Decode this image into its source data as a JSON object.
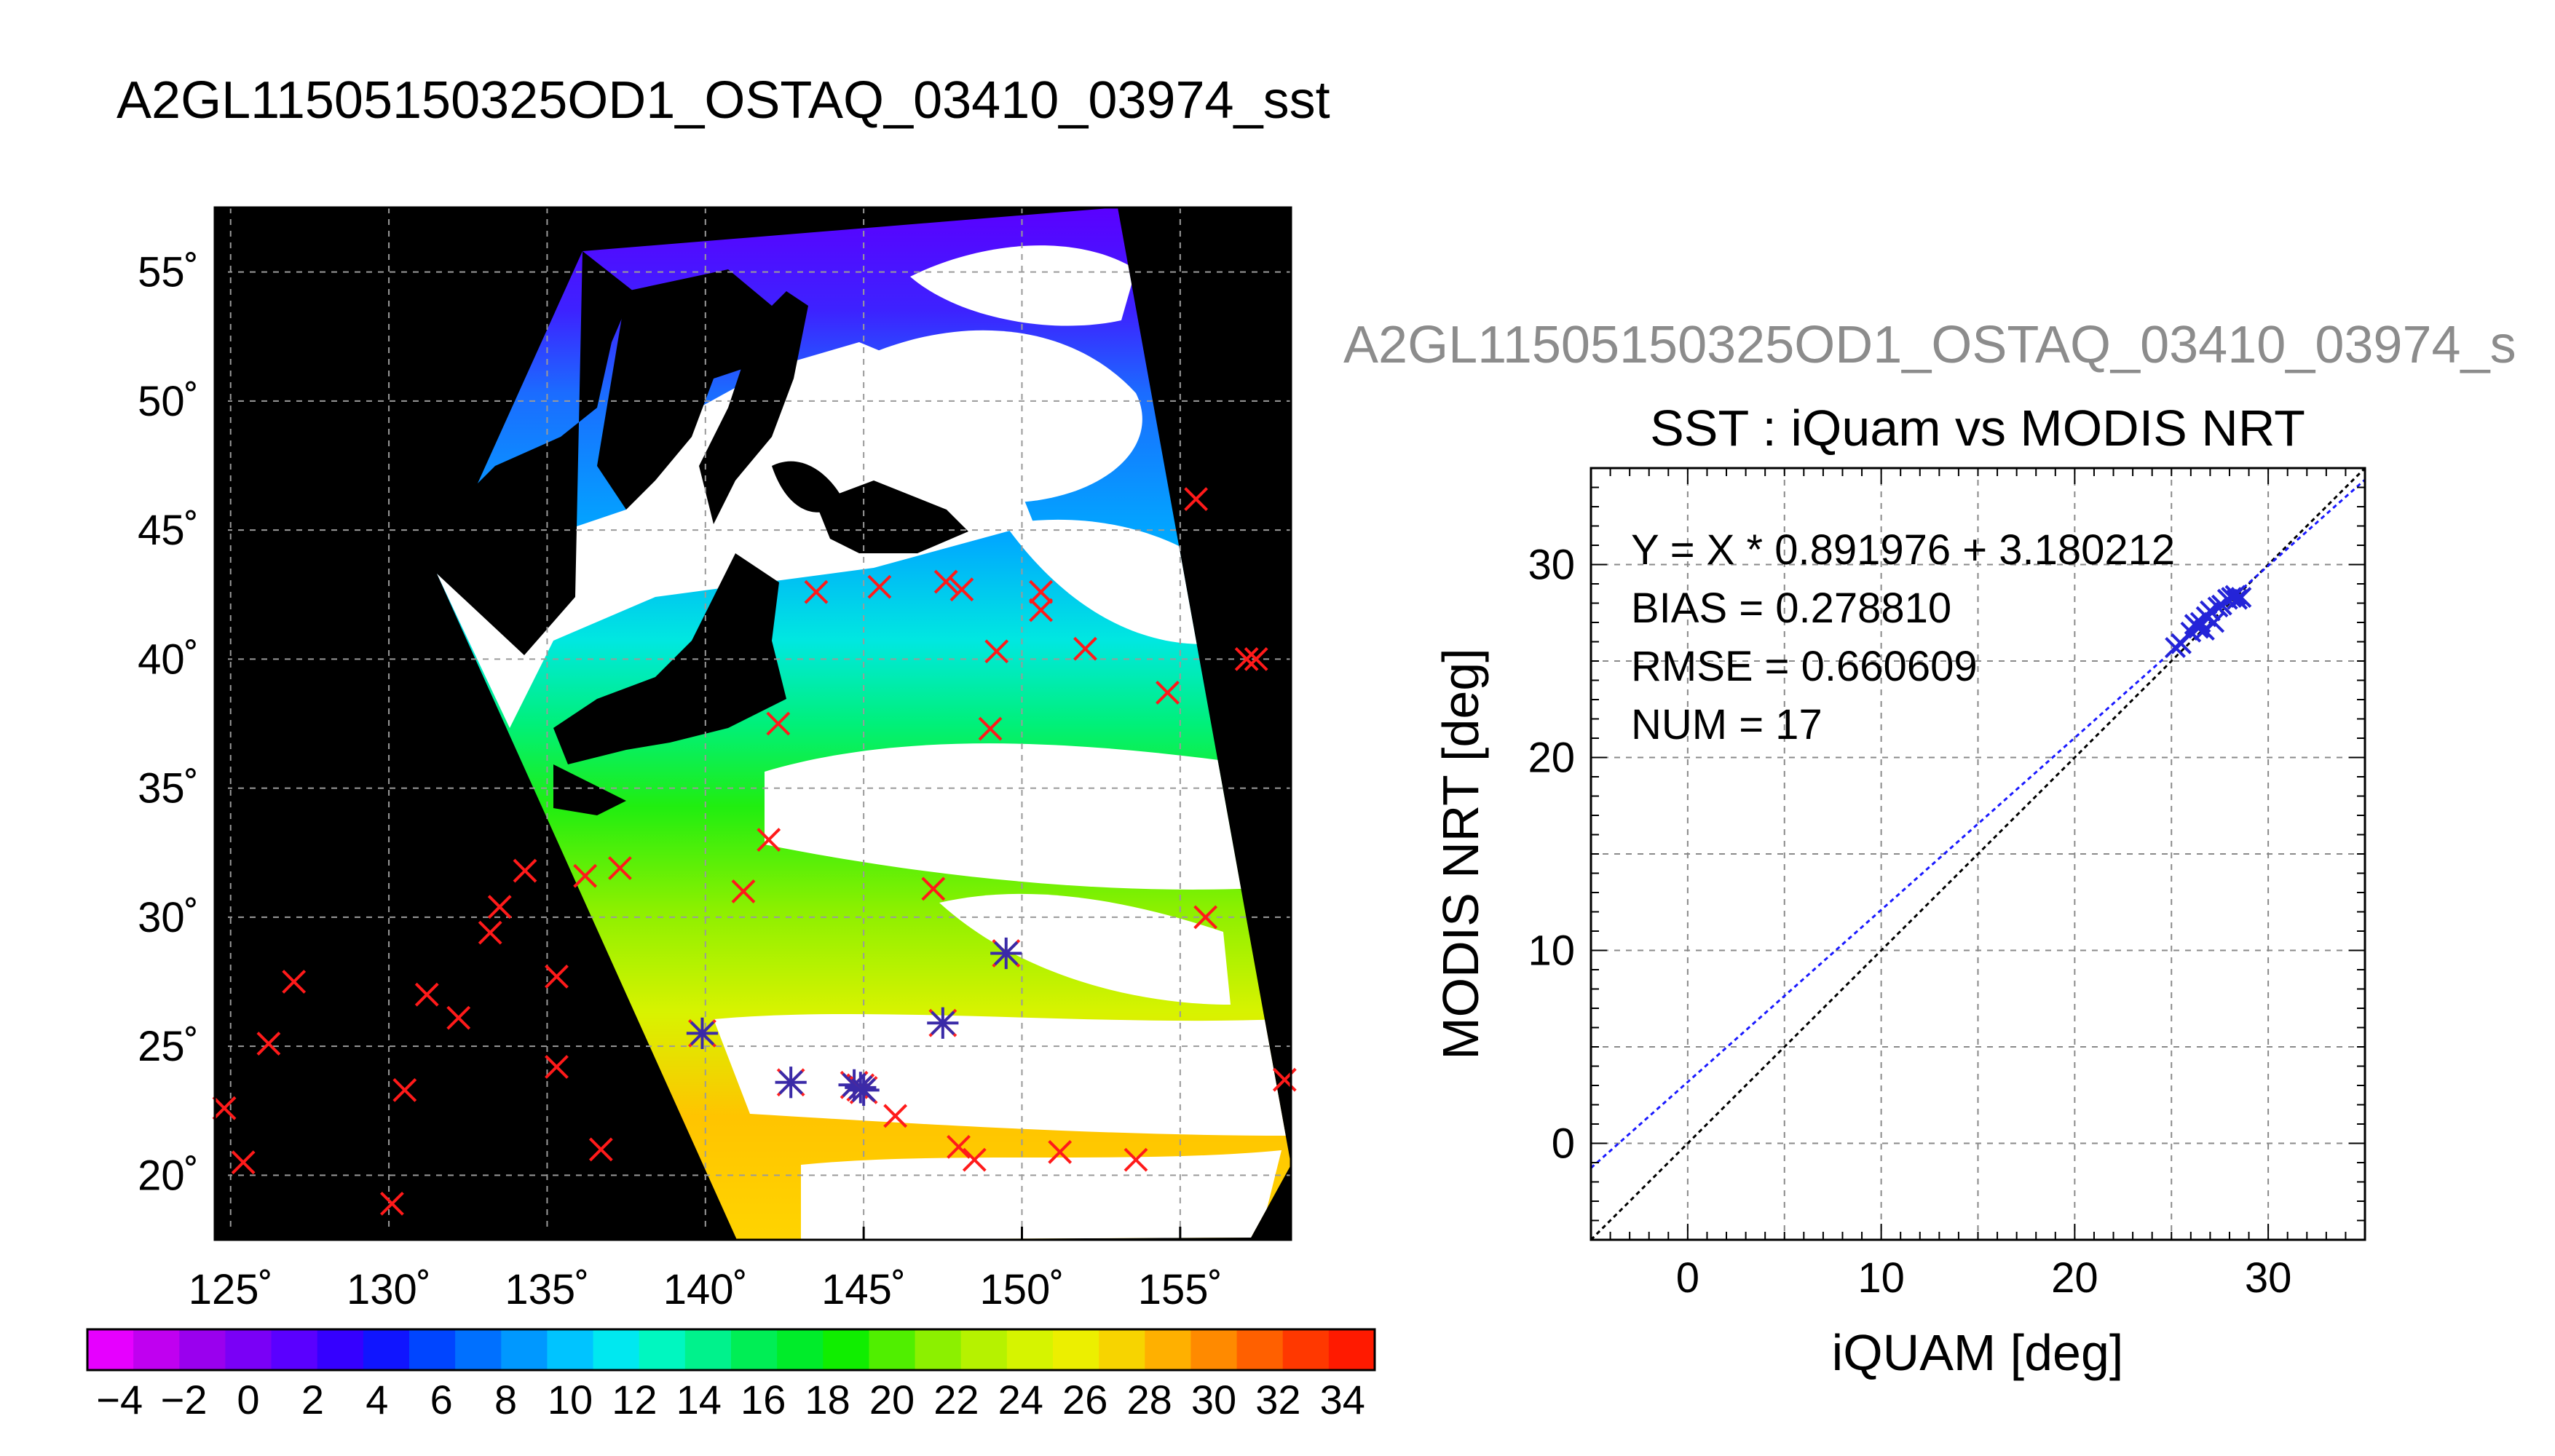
{
  "main_title": "A2GL11505150325OD1_OSTAQ_03410_03974_sst",
  "scatter_header": "A2GL11505150325OD1_OSTAQ_03410_03974_s",
  "chart_data": [
    {
      "type": "map",
      "title": "",
      "x_ticks": [
        "125˚",
        "130˚",
        "135˚",
        "140˚",
        "145˚",
        "150˚",
        "155˚"
      ],
      "x_tick_values": [
        125,
        130,
        135,
        140,
        145,
        150,
        155
      ],
      "y_ticks": [
        "55˚",
        "50˚",
        "45˚",
        "40˚",
        "35˚",
        "30˚",
        "25˚",
        "20˚"
      ],
      "y_tick_values": [
        55,
        50,
        45,
        40,
        35,
        30,
        25,
        20
      ],
      "xlim": [
        124.5,
        158.5
      ],
      "ylim": [
        17.5,
        57.5
      ],
      "grid": true,
      "colorbar": {
        "ticks": [
          "−4",
          "−2",
          "0",
          "2",
          "4",
          "6",
          "8",
          "10",
          "12",
          "14",
          "16",
          "18",
          "20",
          "22",
          "24",
          "26",
          "28",
          "30",
          "32",
          "34"
        ],
        "range": [
          -5,
          35
        ],
        "colors": [
          "#e600ff",
          "#c000f0",
          "#9a00ee",
          "#7a00f6",
          "#5a00ff",
          "#3500ff",
          "#1015ff",
          "#0045ff",
          "#0070ff",
          "#0098ff",
          "#00c4ff",
          "#00e8f0",
          "#00f7c0",
          "#00f28c",
          "#00ee55",
          "#00ec2a",
          "#10ee00",
          "#50ef00",
          "#8cf000",
          "#b6f200",
          "#d6f400",
          "#ecef00",
          "#f7d400",
          "#ffb000",
          "#ff8a00",
          "#ff6000",
          "#ff3800",
          "#ff1a00"
        ]
      },
      "unmatched_points": [
        [
          125.4,
          20.5
        ],
        [
          124.8,
          22.6
        ],
        [
          126.2,
          25.1
        ],
        [
          127.0,
          27.5
        ],
        [
          130.1,
          18.9
        ],
        [
          130.5,
          23.3
        ],
        [
          131.2,
          27.0
        ],
        [
          132.2,
          26.1
        ],
        [
          133.2,
          29.4
        ],
        [
          133.5,
          30.4
        ],
        [
          134.3,
          31.8
        ],
        [
          135.3,
          27.7
        ],
        [
          135.3,
          24.2
        ],
        [
          136.2,
          31.6
        ],
        [
          136.7,
          21.0
        ],
        [
          137.3,
          31.9
        ],
        [
          141.2,
          31.0
        ],
        [
          142.0,
          33.0
        ],
        [
          142.3,
          37.5
        ],
        [
          143.5,
          42.6
        ],
        [
          145.5,
          42.8
        ],
        [
          146.0,
          22.3
        ],
        [
          147.2,
          31.1
        ],
        [
          147.6,
          43.0
        ],
        [
          148.0,
          21.1
        ],
        [
          148.1,
          42.7
        ],
        [
          148.5,
          20.6
        ],
        [
          149.2,
          40.3
        ],
        [
          149.0,
          37.3
        ],
        [
          150.6,
          42.6
        ],
        [
          150.6,
          41.9
        ],
        [
          151.2,
          20.9
        ],
        [
          152.0,
          40.4
        ],
        [
          153.6,
          20.6
        ],
        [
          154.6,
          38.7
        ],
        [
          155.5,
          46.2
        ],
        [
          155.8,
          30.0
        ],
        [
          157.1,
          40.0
        ],
        [
          157.4,
          40.0
        ],
        [
          158.3,
          23.7
        ]
      ],
      "matched_points": [
        [
          139.9,
          25.5
        ],
        [
          142.7,
          23.6
        ],
        [
          144.7,
          23.5
        ],
        [
          144.9,
          23.4
        ],
        [
          145.0,
          23.3
        ],
        [
          147.5,
          25.9
        ],
        [
          149.5,
          28.6
        ]
      ]
    },
    {
      "type": "scatter",
      "title": "SST : iQuam vs MODIS NRT",
      "xlabel": "iQUAM [deg]",
      "ylabel": "MODIS NRT [deg]",
      "xlim": [
        -5,
        35
      ],
      "ylim": [
        -5,
        35
      ],
      "x_ticks": [
        "0",
        "10",
        "20",
        "30"
      ],
      "x_tick_values": [
        0,
        10,
        20,
        30
      ],
      "y_ticks": [
        "0",
        "10",
        "20",
        "30"
      ],
      "y_tick_values": [
        0,
        10,
        20,
        30
      ],
      "grid": true,
      "stats": [
        "Y = X * 0.891976 + 3.180212",
        "BIAS = 0.278810",
        "RMSE = 0.660609",
        "NUM = 17"
      ],
      "fit": {
        "slope": 0.891976,
        "intercept": 3.180212,
        "color": "#1a1aff"
      },
      "identity_line_color": "#000000",
      "marker_color": "#2424d8",
      "points": [
        [
          25.2,
          25.7
        ],
        [
          25.5,
          25.9
        ],
        [
          26.0,
          26.5
        ],
        [
          26.2,
          26.9
        ],
        [
          26.4,
          26.7
        ],
        [
          26.5,
          27.0
        ],
        [
          26.8,
          27.3
        ],
        [
          27.0,
          27.6
        ],
        [
          27.2,
          27.0
        ],
        [
          27.4,
          27.8
        ],
        [
          27.6,
          27.9
        ],
        [
          27.9,
          28.2
        ],
        [
          28.1,
          28.3
        ],
        [
          28.3,
          28.4
        ],
        [
          28.4,
          28.2
        ],
        [
          28.6,
          28.3
        ],
        [
          26.7,
          26.6
        ]
      ]
    }
  ]
}
